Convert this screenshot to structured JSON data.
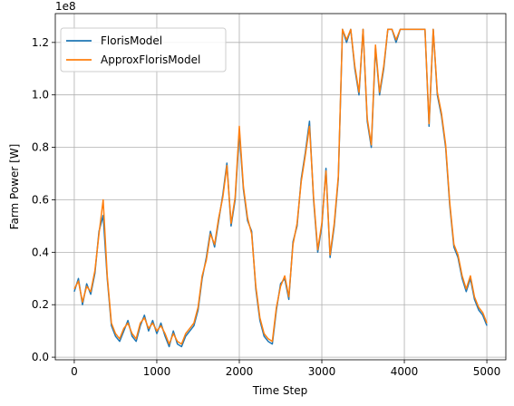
{
  "chart_data": {
    "type": "line",
    "title": "",
    "xlabel": "Time Step",
    "ylabel": "Farm Power [W]",
    "y_offset_label": "1e8",
    "xlim": [
      -230,
      5230
    ],
    "ylim": [
      -1000000,
      131000000
    ],
    "x_ticks": [
      0,
      1000,
      2000,
      3000,
      4000,
      5000
    ],
    "x_tick_labels": [
      "0",
      "1000",
      "2000",
      "3000",
      "4000",
      "5000"
    ],
    "y_ticks": [
      0,
      20000000,
      40000000,
      60000000,
      80000000,
      100000000,
      120000000
    ],
    "y_tick_labels": [
      "0.0",
      "0.2",
      "0.4",
      "0.6",
      "0.8",
      "1.0",
      "1.2"
    ],
    "grid": true,
    "legend_position": "upper-left",
    "x": [
      0,
      50,
      100,
      150,
      200,
      250,
      300,
      350,
      400,
      450,
      500,
      550,
      600,
      650,
      700,
      750,
      800,
      850,
      900,
      950,
      1000,
      1050,
      1100,
      1150,
      1200,
      1250,
      1300,
      1350,
      1400,
      1450,
      1500,
      1550,
      1600,
      1650,
      1700,
      1750,
      1800,
      1850,
      1900,
      1950,
      2000,
      2050,
      2100,
      2150,
      2200,
      2250,
      2300,
      2350,
      2400,
      2450,
      2500,
      2550,
      2600,
      2650,
      2700,
      2750,
      2800,
      2850,
      2900,
      2950,
      3000,
      3050,
      3100,
      3150,
      3200,
      3250,
      3300,
      3350,
      3400,
      3450,
      3500,
      3550,
      3600,
      3650,
      3700,
      3750,
      3800,
      3850,
      3900,
      3950,
      4000,
      4050,
      4100,
      4150,
      4200,
      4250,
      4300,
      4350,
      4400,
      4450,
      4500,
      4550,
      4600,
      4650,
      4700,
      4750,
      4800,
      4850,
      4900,
      4950,
      5000
    ],
    "series": [
      {
        "name": "FlorisModel",
        "color": "#1f77b4",
        "values": [
          25000000,
          30000000,
          20000000,
          28000000,
          24000000,
          32000000,
          48000000,
          54000000,
          30000000,
          12000000,
          8000000,
          6000000,
          10000000,
          14000000,
          8000000,
          6000000,
          12000000,
          16000000,
          10000000,
          14000000,
          9000000,
          13000000,
          8000000,
          4000000,
          10000000,
          5000000,
          4000000,
          8000000,
          10000000,
          12000000,
          18000000,
          30000000,
          38000000,
          48000000,
          42000000,
          52000000,
          62000000,
          74000000,
          50000000,
          60000000,
          86000000,
          64000000,
          52000000,
          48000000,
          26000000,
          14000000,
          8000000,
          6000000,
          5000000,
          18000000,
          28000000,
          30000000,
          22000000,
          44000000,
          50000000,
          68000000,
          78000000,
          90000000,
          60000000,
          40000000,
          50000000,
          72000000,
          38000000,
          50000000,
          68000000,
          125000000,
          120000000,
          125000000,
          110000000,
          100000000,
          125000000,
          90000000,
          80000000,
          118000000,
          100000000,
          110000000,
          125000000,
          125000000,
          120000000,
          125000000,
          125000000,
          125000000,
          125000000,
          125000000,
          125000000,
          125000000,
          88000000,
          125000000,
          100000000,
          92000000,
          80000000,
          58000000,
          42000000,
          38000000,
          30000000,
          25000000,
          30000000,
          22000000,
          18000000,
          16000000,
          12000000
        ]
      },
      {
        "name": "ApproxFlorisModel",
        "color": "#ff7f0e",
        "values": [
          26000000,
          29000000,
          21000000,
          27000000,
          25000000,
          33000000,
          47000000,
          60000000,
          31000000,
          13000000,
          9000000,
          7000000,
          11000000,
          13000000,
          9000000,
          7000000,
          13000000,
          15000000,
          11000000,
          13000000,
          10000000,
          12000000,
          9000000,
          5000000,
          9000000,
          6000000,
          5000000,
          9000000,
          11000000,
          13000000,
          19000000,
          31000000,
          37000000,
          47000000,
          43000000,
          53000000,
          61000000,
          73000000,
          51000000,
          61000000,
          88000000,
          65000000,
          53000000,
          47000000,
          27000000,
          15000000,
          9000000,
          7000000,
          6000000,
          19000000,
          27000000,
          31000000,
          23000000,
          43000000,
          51000000,
          67000000,
          77000000,
          88000000,
          61000000,
          41000000,
          51000000,
          71000000,
          39000000,
          51000000,
          69000000,
          125000000,
          121000000,
          125000000,
          111000000,
          101000000,
          125000000,
          91000000,
          81000000,
          119000000,
          101000000,
          111000000,
          125000000,
          125000000,
          121000000,
          125000000,
          125000000,
          125000000,
          125000000,
          125000000,
          125000000,
          125000000,
          89000000,
          125000000,
          101000000,
          93000000,
          81000000,
          59000000,
          43000000,
          39000000,
          31000000,
          26000000,
          31000000,
          23000000,
          19000000,
          17000000,
          13000000
        ]
      }
    ]
  }
}
